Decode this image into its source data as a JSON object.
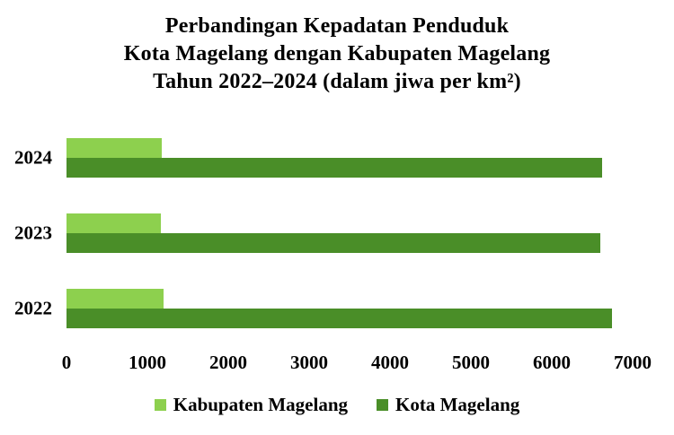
{
  "title": {
    "line1": "Perbandingan Kepadatan Penduduk",
    "line2": "Kota Magelang dengan Kabupaten Magelang",
    "line3": "Tahun 2022–2024 (dalam jiwa per km²)"
  },
  "colors": {
    "kabupaten_magelang": "#8DD04E",
    "kota_magelang": "#4A8E28",
    "text": "#000000",
    "background": "#FFFFFF"
  },
  "chart_data": {
    "type": "bar",
    "orientation": "horizontal",
    "title": "Perbandingan Kepadatan Penduduk Kota Magelang dengan Kabupaten Magelang Tahun 2022–2024 (dalam jiwa per km²)",
    "categories": [
      "2024",
      "2023",
      "2022"
    ],
    "series": [
      {
        "name": "Kabupaten Magelang",
        "color": "#8DD04E",
        "values": [
          1180,
          1170,
          1200
        ]
      },
      {
        "name": "Kota Magelang",
        "color": "#4A8E28",
        "values": [
          6620,
          6600,
          6740
        ]
      }
    ],
    "x_ticks": [
      "0",
      "1000",
      "2000",
      "3000",
      "4000",
      "5000",
      "6000",
      "7000"
    ],
    "xlim": [
      0,
      7000
    ],
    "ylabel": "",
    "xlabel": "",
    "grid": false,
    "legend_position": "bottom",
    "legend": [
      "Kabupaten Magelang",
      "Kota Magelang"
    ]
  }
}
